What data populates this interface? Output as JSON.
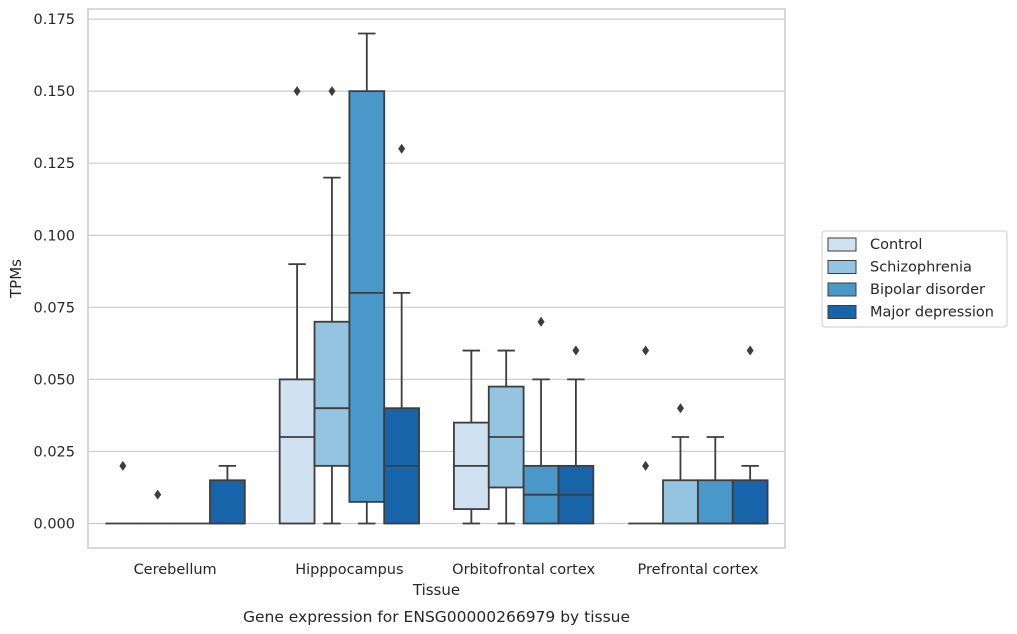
{
  "chart_data": {
    "type": "box",
    "title": "",
    "caption": "Gene expression for ENSG00000266979 by tissue",
    "xlabel": "Tissue",
    "ylabel": "TPMs",
    "ylim": [
      -0.0085,
      0.1785
    ],
    "yticks": [
      0.0,
      0.025,
      0.05,
      0.075,
      0.1,
      0.125,
      0.15,
      0.175
    ],
    "ytick_labels": [
      "0.000",
      "0.025",
      "0.050",
      "0.075",
      "0.100",
      "0.125",
      "0.150",
      "0.175"
    ],
    "grid": true,
    "legend_position": "right",
    "categories": [
      "Cerebellum",
      "Hipppocampus",
      "Orbitofrontal cortex",
      "Prefrontal cortex"
    ],
    "series": [
      {
        "name": "Control",
        "color": "#d0e1f2",
        "boxes": [
          {
            "q1": 0.0,
            "median": 0.0,
            "q3": 0.0,
            "whisker_low": 0.0,
            "whisker_high": 0.0,
            "outliers": [
              0.02
            ]
          },
          {
            "q1": 0.0,
            "median": 0.03,
            "q3": 0.05,
            "whisker_low": 0.0,
            "whisker_high": 0.09,
            "outliers": [
              0.15
            ]
          },
          {
            "q1": 0.005,
            "median": 0.02,
            "q3": 0.035,
            "whisker_low": 0.0,
            "whisker_high": 0.06,
            "outliers": []
          },
          {
            "q1": 0.0,
            "median": 0.0,
            "q3": 0.0,
            "whisker_low": 0.0,
            "whisker_high": 0.0,
            "outliers": [
              0.02,
              0.06
            ]
          }
        ]
      },
      {
        "name": "Schizophrenia",
        "color": "#94c4df",
        "boxes": [
          {
            "q1": 0.0,
            "median": 0.0,
            "q3": 0.0,
            "whisker_low": 0.0,
            "whisker_high": 0.0,
            "outliers": [
              0.01
            ]
          },
          {
            "q1": 0.02,
            "median": 0.04,
            "q3": 0.07,
            "whisker_low": 0.0,
            "whisker_high": 0.12,
            "outliers": [
              0.15
            ]
          },
          {
            "q1": 0.0125,
            "median": 0.03,
            "q3": 0.0475,
            "whisker_low": 0.0,
            "whisker_high": 0.06,
            "outliers": []
          },
          {
            "q1": 0.0,
            "median": 0.0,
            "q3": 0.015,
            "whisker_low": 0.0,
            "whisker_high": 0.03,
            "outliers": [
              0.04
            ]
          }
        ]
      },
      {
        "name": "Bipolar disorder",
        "color": "#4a98c9",
        "boxes": [
          {
            "q1": 0.0,
            "median": 0.0,
            "q3": 0.0,
            "whisker_low": 0.0,
            "whisker_high": 0.0,
            "outliers": []
          },
          {
            "q1": 0.0075,
            "median": 0.08,
            "q3": 0.15,
            "whisker_low": 0.0,
            "whisker_high": 0.17,
            "outliers": []
          },
          {
            "q1": 0.0,
            "median": 0.01,
            "q3": 0.02,
            "whisker_low": 0.0,
            "whisker_high": 0.05,
            "outliers": [
              0.07
            ]
          },
          {
            "q1": 0.0,
            "median": 0.0,
            "q3": 0.015,
            "whisker_low": 0.0,
            "whisker_high": 0.03,
            "outliers": []
          }
        ]
      },
      {
        "name": "Major depression",
        "color": "#1764ab",
        "boxes": [
          {
            "q1": 0.0,
            "median": 0.0,
            "q3": 0.015,
            "whisker_low": 0.0,
            "whisker_high": 0.02,
            "outliers": []
          },
          {
            "q1": 0.0,
            "median": 0.02,
            "q3": 0.04,
            "whisker_low": 0.0,
            "whisker_high": 0.08,
            "outliers": [
              0.13
            ]
          },
          {
            "q1": 0.0,
            "median": 0.01,
            "q3": 0.02,
            "whisker_low": 0.0,
            "whisker_high": 0.05,
            "outliers": [
              0.06
            ]
          },
          {
            "q1": 0.0,
            "median": 0.0,
            "q3": 0.015,
            "whisker_low": 0.0,
            "whisker_high": 0.02,
            "outliers": [
              0.06
            ]
          }
        ]
      }
    ]
  }
}
